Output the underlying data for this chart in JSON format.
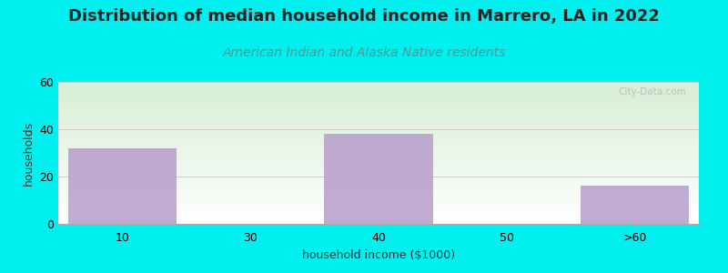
{
  "title": "Distribution of median household income in Marrero, LA in 2022",
  "subtitle": "American Indian and Alaska Native residents",
  "xlabel": "household income ($1000)",
  "ylabel": "households",
  "categories": [
    "10",
    "30",
    "40",
    "50",
    ">60"
  ],
  "values": [
    32,
    0,
    38,
    0,
    16
  ],
  "bar_color": "#b9a0cc",
  "background_outer": "#00f0f0",
  "background_inner_top": "#d6eed6",
  "background_inner_bottom": "#ffffff",
  "ylim": [
    0,
    60
  ],
  "yticks": [
    0,
    20,
    40,
    60
  ],
  "grid_color": "#cccccc",
  "title_fontsize": 13,
  "subtitle_fontsize": 10,
  "subtitle_color": "#4a9a9a",
  "axis_label_fontsize": 9,
  "watermark": "City-Data.com",
  "title_color": "#222222"
}
